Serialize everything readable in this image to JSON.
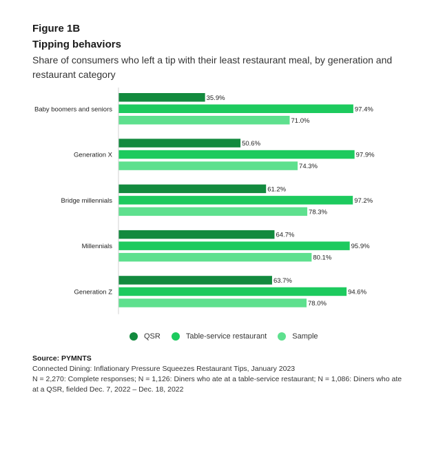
{
  "figure_label": "Figure 1B",
  "chart_data": {
    "type": "bar",
    "orientation": "horizontal",
    "title": "Tipping behaviors",
    "subtitle": "Share of consumers who left a tip with their least restaurant meal, by generation and restaurant category",
    "categories": [
      "Baby boomers and seniors",
      "Generation X",
      "Bridge millennials",
      "Millennials",
      "Generation Z"
    ],
    "series": [
      {
        "name": "QSR",
        "color": "#128a3e",
        "values": [
          35.9,
          50.6,
          61.2,
          64.7,
          63.7
        ],
        "labels": [
          "35.9%",
          "50.6%",
          "61.2%",
          "64.7%",
          "63.7%"
        ]
      },
      {
        "name": "Table-service restaurant",
        "color": "#1dca5e",
        "values": [
          97.4,
          97.9,
          97.2,
          95.9,
          94.6
        ],
        "labels": [
          "97.4%",
          "97.9%",
          "97.2%",
          "95.9%",
          "94.6%"
        ]
      },
      {
        "name": "Sample",
        "color": "#5ee08e",
        "values": [
          71.0,
          74.3,
          78.3,
          80.1,
          78.0
        ],
        "labels": [
          "71.0%",
          "74.3%",
          "78.3%",
          "80.1%",
          "78.0%"
        ]
      }
    ],
    "xlim": [
      0,
      100
    ],
    "grid": false,
    "legend_position": "bottom"
  },
  "legend": {
    "qsr": "QSR",
    "table_service": "Table-service restaurant",
    "sample": "Sample"
  },
  "notes": {
    "source": "Source: PYMNTS",
    "publication": "Connected Dining: Inflationary Pressure Squeezes Restaurant Tips, January 2023",
    "sample_info": "N = 2,270: Complete responses; N = 1,126: Diners who ate at a table-service restaurant; N = 1,086: Diners who ate at a QSR, fielded Dec. 7, 2022 – Dec. 18, 2022"
  }
}
